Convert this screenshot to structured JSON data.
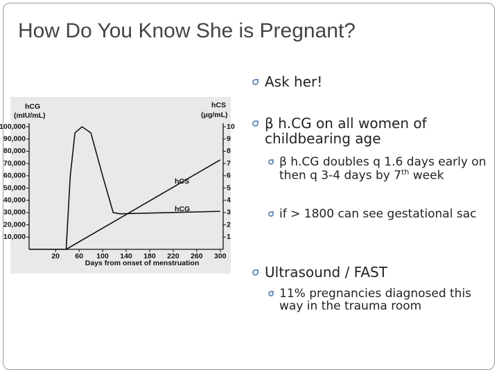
{
  "title": "How Do You Know She is Pregnant?",
  "bullets": [
    {
      "text": "Ask her!"
    },
    {
      "text": "β h.CG on all women of childbearing age"
    },
    {
      "parts": [
        "β h.CG doubles q 1.6 days early on then q 3-4 days by 7",
        "th",
        " week"
      ]
    },
    {
      "text": "if > 1800 can see gestational sac"
    },
    {
      "text": "Ultrasound / FAST"
    },
    {
      "text": "11% pregnancies diagnosed this way in the trauma room"
    }
  ],
  "chart_data": {
    "type": "line",
    "ylabel": "hCG",
    "yunit": "(mIU/mL)",
    "y2label": "hCS",
    "y2unit": "(μg/mL)",
    "xlabel": "Days from onset of menstruation",
    "xlim": [
      -25,
      305
    ],
    "xticks": [
      20,
      60,
      100,
      140,
      180,
      220,
      260,
      300
    ],
    "ylim": [
      0,
      100000
    ],
    "yticks": [
      {
        "value": 10000,
        "label": "10,000"
      },
      {
        "value": 20000,
        "label": "20,000"
      },
      {
        "value": 30000,
        "label": "30,000"
      },
      {
        "value": 40000,
        "label": "40,000"
      },
      {
        "value": 50000,
        "label": "50,000"
      },
      {
        "value": 60000,
        "label": "60,000"
      },
      {
        "value": 70000,
        "label": "70,000"
      },
      {
        "value": 80000,
        "label": "80,000"
      },
      {
        "value": 90000,
        "label": "90,000"
      },
      {
        "value": 100000,
        "label": "100,000"
      }
    ],
    "y2lim": [
      0,
      10
    ],
    "y2ticks": [
      1,
      2,
      3,
      4,
      5,
      6,
      7,
      8,
      9,
      10
    ],
    "series": [
      {
        "name": "hCG",
        "color": "#111111",
        "x": [
          -25,
          38,
          45,
          53,
          65,
          80,
          100,
          118,
          130,
          300
        ],
        "values": [
          0,
          0,
          60000,
          95000,
          100000,
          95000,
          60000,
          30000,
          29000,
          31000
        ]
      },
      {
        "name": "hCS",
        "color": "#111111",
        "axis": "y2",
        "x": [
          38,
          300
        ],
        "values": [
          0,
          7.3
        ]
      }
    ]
  }
}
